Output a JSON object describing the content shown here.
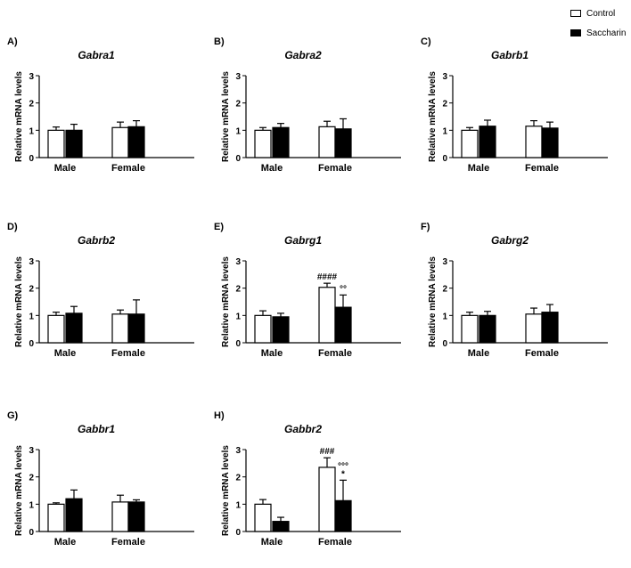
{
  "legend": [
    {
      "name": "Control",
      "fill": "#ffffff"
    },
    {
      "name": "Saccharin",
      "fill": "#000000"
    }
  ],
  "colors": {
    "control": "#ffffff",
    "saccharin": "#000000",
    "axis": "#000000"
  },
  "chart_data": [
    {
      "panel": "A)",
      "type": "bar",
      "title": "Gabra1",
      "ylabel": "Relative mRNA levels",
      "yticks": [
        "0",
        "1",
        "2",
        "3"
      ],
      "ylim": [
        0,
        3
      ],
      "categories": [
        "Male",
        "Female"
      ],
      "series": [
        {
          "name": "Control",
          "values": [
            1.0,
            1.1
          ],
          "errors": [
            0.12,
            0.2
          ]
        },
        {
          "name": "Saccharin",
          "values": [
            1.0,
            1.13
          ],
          "errors": [
            0.22,
            0.22
          ]
        }
      ],
      "annotations": []
    },
    {
      "panel": "B)",
      "type": "bar",
      "title": "Gabra2",
      "ylabel": "Relative mRNA levels",
      "yticks": [
        "0",
        "1",
        "2",
        "3"
      ],
      "ylim": [
        0,
        3
      ],
      "categories": [
        "Male",
        "Female"
      ],
      "series": [
        {
          "name": "Control",
          "values": [
            1.0,
            1.13
          ],
          "errors": [
            0.1,
            0.2
          ]
        },
        {
          "name": "Saccharin",
          "values": [
            1.1,
            1.05
          ],
          "errors": [
            0.15,
            0.37
          ]
        }
      ],
      "annotations": []
    },
    {
      "panel": "C)",
      "type": "bar",
      "title": "Gabrb1",
      "ylabel": "Relative mRNA levels",
      "yticks": [
        "0",
        "1",
        "2",
        "3"
      ],
      "ylim": [
        0,
        3
      ],
      "categories": [
        "Male",
        "Female"
      ],
      "series": [
        {
          "name": "Control",
          "values": [
            1.0,
            1.15
          ],
          "errors": [
            0.1,
            0.2
          ]
        },
        {
          "name": "Saccharin",
          "values": [
            1.15,
            1.08
          ],
          "errors": [
            0.22,
            0.22
          ]
        }
      ],
      "annotations": []
    },
    {
      "panel": "D)",
      "type": "bar",
      "title": "Gabrb2",
      "ylabel": "Relative mRNA levels",
      "yticks": [
        "0",
        "1",
        "2",
        "3"
      ],
      "ylim": [
        0,
        3
      ],
      "categories": [
        "Male",
        "Female"
      ],
      "series": [
        {
          "name": "Control",
          "values": [
            1.0,
            1.05
          ],
          "errors": [
            0.12,
            0.15
          ]
        },
        {
          "name": "Saccharin",
          "values": [
            1.08,
            1.05
          ],
          "errors": [
            0.25,
            0.52
          ]
        }
      ],
      "annotations": []
    },
    {
      "panel": "E)",
      "type": "bar",
      "title": "Gabrg1",
      "ylabel": "Relative mRNA levels",
      "yticks": [
        "0",
        "1",
        "2",
        "3"
      ],
      "ylim": [
        0,
        3
      ],
      "categories": [
        "Male",
        "Female"
      ],
      "series": [
        {
          "name": "Control",
          "values": [
            1.0,
            2.03
          ],
          "errors": [
            0.17,
            0.15
          ]
        },
        {
          "name": "Saccharin",
          "values": [
            0.95,
            1.3
          ],
          "errors": [
            0.13,
            0.45
          ]
        }
      ],
      "annotations": [
        {
          "text": "####",
          "category": 1,
          "series": 0
        },
        {
          "text": "°°",
          "category": 1,
          "series": 1
        }
      ]
    },
    {
      "panel": "F)",
      "type": "bar",
      "title": "Gabrg2",
      "ylabel": "Relative mRNA levels",
      "yticks": [
        "0",
        "1",
        "2",
        "3"
      ],
      "ylim": [
        0,
        3
      ],
      "categories": [
        "Male",
        "Female"
      ],
      "series": [
        {
          "name": "Control",
          "values": [
            1.0,
            1.05
          ],
          "errors": [
            0.12,
            0.22
          ]
        },
        {
          "name": "Saccharin",
          "values": [
            1.0,
            1.12
          ],
          "errors": [
            0.15,
            0.28
          ]
        }
      ],
      "annotations": []
    },
    {
      "panel": "G)",
      "type": "bar",
      "title": "Gabbr1",
      "ylabel": "Relative mRNA levels",
      "yticks": [
        "0",
        "1",
        "2",
        "3"
      ],
      "ylim": [
        0,
        3
      ],
      "categories": [
        "Male",
        "Female"
      ],
      "series": [
        {
          "name": "Control",
          "values": [
            1.0,
            1.08
          ],
          "errors": [
            0.05,
            0.25
          ]
        },
        {
          "name": "Saccharin",
          "values": [
            1.2,
            1.08
          ],
          "errors": [
            0.32,
            0.08
          ]
        }
      ],
      "annotations": []
    },
    {
      "panel": "H)",
      "type": "bar",
      "title": "Gabbr2",
      "ylabel": "Relative mRNA levels",
      "yticks": [
        "0",
        "1",
        "2",
        "3"
      ],
      "ylim": [
        0,
        3
      ],
      "categories": [
        "Male",
        "Female"
      ],
      "series": [
        {
          "name": "Control",
          "values": [
            1.0,
            2.35
          ],
          "errors": [
            0.17,
            0.35
          ]
        },
        {
          "name": "Saccharin",
          "values": [
            0.37,
            1.13
          ],
          "errors": [
            0.15,
            0.75
          ]
        }
      ],
      "annotations": [
        {
          "text": "###",
          "category": 1,
          "series": 0
        },
        {
          "text": "*",
          "category": 1,
          "series": 1
        },
        {
          "text": "°°°",
          "category": 1,
          "series": 1
        }
      ]
    }
  ]
}
